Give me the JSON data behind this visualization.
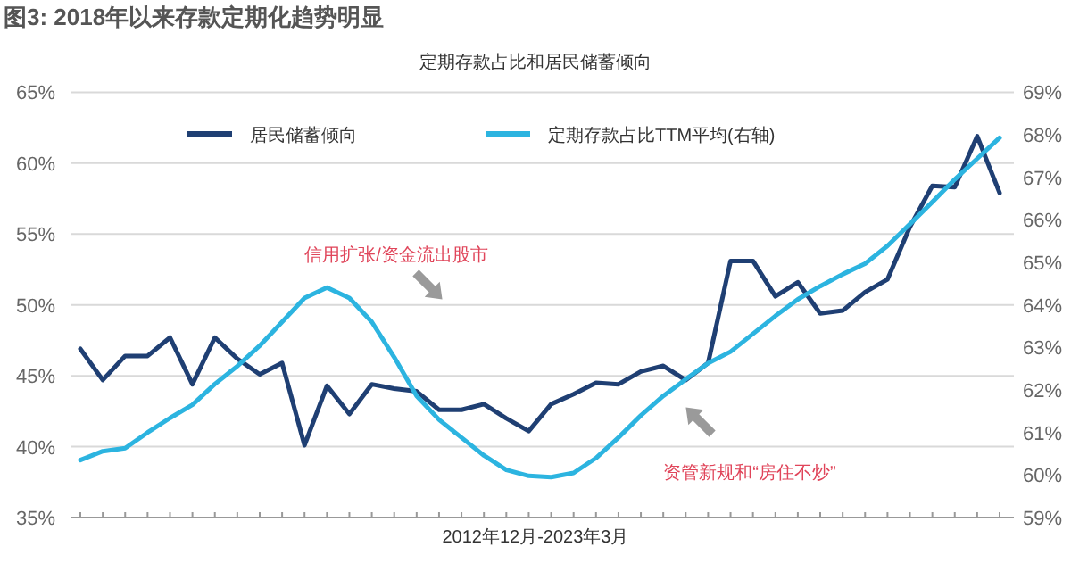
{
  "chart_data": {
    "type": "line",
    "title": "图3: 2018年以来存款定期化趋势明显",
    "subtitle": "定期存款占比和居民储蓄倾向",
    "xlabel": "2012年12月-2023年3月",
    "categories": [
      null,
      null,
      null,
      null,
      null,
      null,
      null,
      null,
      null,
      null,
      null,
      null,
      null,
      null,
      null,
      null,
      null,
      null,
      null,
      null,
      null,
      null,
      null,
      null,
      null,
      null,
      null,
      null,
      null,
      null,
      null,
      null,
      null,
      null,
      null,
      null,
      null,
      null,
      null,
      null,
      null,
      null
    ],
    "series": [
      {
        "name": "居民储蓄倾向",
        "color": "#1f3f73",
        "values": [
          46.9,
          44.7,
          46.4,
          46.4,
          47.7,
          44.4,
          47.7,
          46.2,
          45.1,
          45.9,
          40.1,
          44.3,
          42.3,
          44.4,
          44.1,
          43.9,
          42.6,
          42.6,
          43.0,
          42.0,
          41.1,
          43.0,
          43.7,
          44.5,
          44.4,
          45.3,
          45.7,
          44.7,
          45.9,
          53.1,
          53.1,
          50.6,
          51.6,
          49.4,
          49.6,
          50.9,
          51.8,
          55.5,
          58.4,
          58.3,
          61.9,
          57.9
        ]
      },
      {
        "name": "定期存款占比TTM平均(右轴)",
        "color": "#2cb4e0",
        "axis": "y2",
        "values": [
          60.35,
          60.56,
          60.63,
          61.0,
          61.34,
          61.65,
          62.14,
          62.56,
          63.04,
          63.6,
          64.16,
          64.41,
          64.16,
          63.6,
          62.77,
          61.86,
          61.3,
          60.88,
          60.46,
          60.12,
          59.98,
          59.95,
          60.05,
          60.4,
          60.88,
          61.4,
          61.86,
          62.25,
          62.63,
          62.9,
          63.32,
          63.74,
          64.13,
          64.44,
          64.72,
          64.97,
          65.39,
          65.9,
          66.42,
          66.95,
          67.44,
          67.93
        ]
      }
    ],
    "ylim": [
      35,
      65
    ],
    "yticks": [
      {
        "value": 35,
        "label": "35%"
      },
      {
        "value": 40,
        "label": "40%"
      },
      {
        "value": 45,
        "label": "45%"
      },
      {
        "value": 50,
        "label": "50%"
      },
      {
        "value": 55,
        "label": "55%"
      },
      {
        "value": 60,
        "label": "60%"
      },
      {
        "value": 65,
        "label": "65%"
      }
    ],
    "y2lim": [
      59,
      69
    ],
    "y2ticks": [
      {
        "value": 59,
        "label": "59%"
      },
      {
        "value": 60,
        "label": "60%"
      },
      {
        "value": 61,
        "label": "61%"
      },
      {
        "value": 62,
        "label": "62%"
      },
      {
        "value": 63,
        "label": "63%"
      },
      {
        "value": 64,
        "label": "64%"
      },
      {
        "value": 65,
        "label": "65%"
      },
      {
        "value": 66,
        "label": "66%"
      },
      {
        "value": 67,
        "label": "67%"
      },
      {
        "value": 68,
        "label": "68%"
      },
      {
        "value": 69,
        "label": "69%"
      }
    ],
    "grid": "y",
    "legend": "top",
    "marker": "none",
    "line_style": "solid",
    "annotations": [
      "信用扩张/资金流出股市",
      "资管新规和“房住不炒”"
    ]
  }
}
